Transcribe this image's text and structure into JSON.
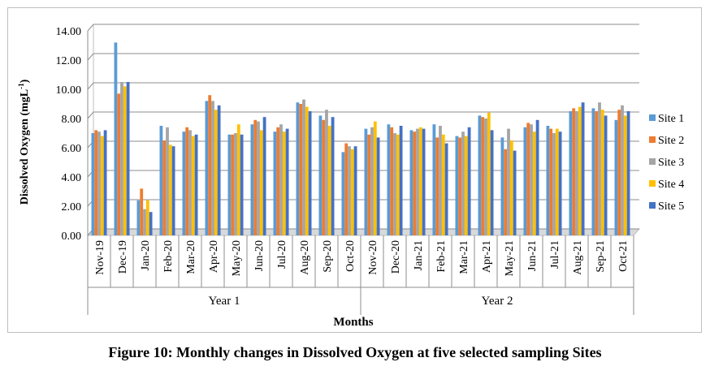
{
  "figure": {
    "caption": "Figure 10: Monthly changes in Dissolved Oxygen at five selected sampling Sites"
  },
  "chart_data": {
    "type": "bar",
    "ylabel": "Dissolved Oxygen (mgL",
    "ylabel_sup": "-1",
    "ylabel_tail": ")",
    "xlabel": "Months",
    "ylim": [
      0,
      14
    ],
    "yticks": [
      "0.00",
      "2.00",
      "4.00",
      "6.00",
      "8.00",
      "10.00",
      "12.00",
      "14.00"
    ],
    "grid": true,
    "legend_position": "right",
    "categories": [
      "Nov-19",
      "Dec-19",
      "Jan-20",
      "Feb-20",
      "Mar-20",
      "Apr-20",
      "May-20",
      "Jun-20",
      "Jul-20",
      "Aug-20",
      "Sep-20",
      "Oct-20",
      "Nov-20",
      "Dec-20",
      "Jan-21",
      "Feb-21",
      "Mar-21",
      "Apr-21",
      "May-21",
      "Jun-21",
      "Jul-21",
      "Aug-21",
      "Sep-21",
      "Oct-21"
    ],
    "groups": [
      {
        "label": "Year 1",
        "count": 12
      },
      {
        "label": "Year 2",
        "count": 12
      }
    ],
    "series": [
      {
        "name": "Site 1",
        "color": "#5b9bd5",
        "values": [
          7.0,
          13.2,
          2.4,
          7.5,
          7.1,
          9.2,
          6.9,
          7.6,
          7.1,
          9.1,
          8.2,
          5.7,
          7.3,
          7.6,
          7.2,
          7.6,
          6.8,
          8.2,
          6.7,
          7.4,
          7.5,
          8.5,
          8.7,
          7.9
        ]
      },
      {
        "name": "Site 2",
        "color": "#ed7d31",
        "values": [
          7.2,
          9.7,
          3.2,
          6.5,
          7.4,
          9.6,
          6.9,
          7.9,
          7.4,
          9.0,
          7.9,
          6.3,
          6.9,
          7.4,
          7.1,
          6.7,
          6.7,
          8.1,
          5.9,
          7.7,
          7.3,
          8.7,
          8.5,
          8.6
        ]
      },
      {
        "name": "Site 3",
        "color": "#a5a5a5",
        "values": [
          7.1,
          10.5,
          1.8,
          7.4,
          7.2,
          9.2,
          7.0,
          7.8,
          7.6,
          9.3,
          8.6,
          6.1,
          7.4,
          7.0,
          7.3,
          7.5,
          7.1,
          8.0,
          7.3,
          7.6,
          7.0,
          8.5,
          9.1,
          8.9
        ]
      },
      {
        "name": "Site 4",
        "color": "#ffc000",
        "values": [
          6.8,
          10.2,
          2.4,
          6.2,
          6.8,
          8.6,
          7.6,
          7.2,
          7.1,
          8.8,
          7.5,
          5.9,
          7.8,
          6.9,
          7.4,
          6.9,
          6.8,
          8.4,
          6.5,
          7.1,
          7.3,
          8.8,
          8.6,
          8.2
        ]
      },
      {
        "name": "Site 5",
        "color": "#4472c4",
        "values": [
          7.2,
          10.5,
          1.6,
          6.1,
          6.9,
          8.9,
          6.9,
          8.1,
          7.3,
          8.5,
          8.1,
          6.1,
          6.7,
          7.5,
          7.3,
          6.3,
          7.4,
          7.2,
          5.8,
          7.9,
          7.1,
          9.1,
          8.2,
          8.5
        ]
      }
    ]
  }
}
